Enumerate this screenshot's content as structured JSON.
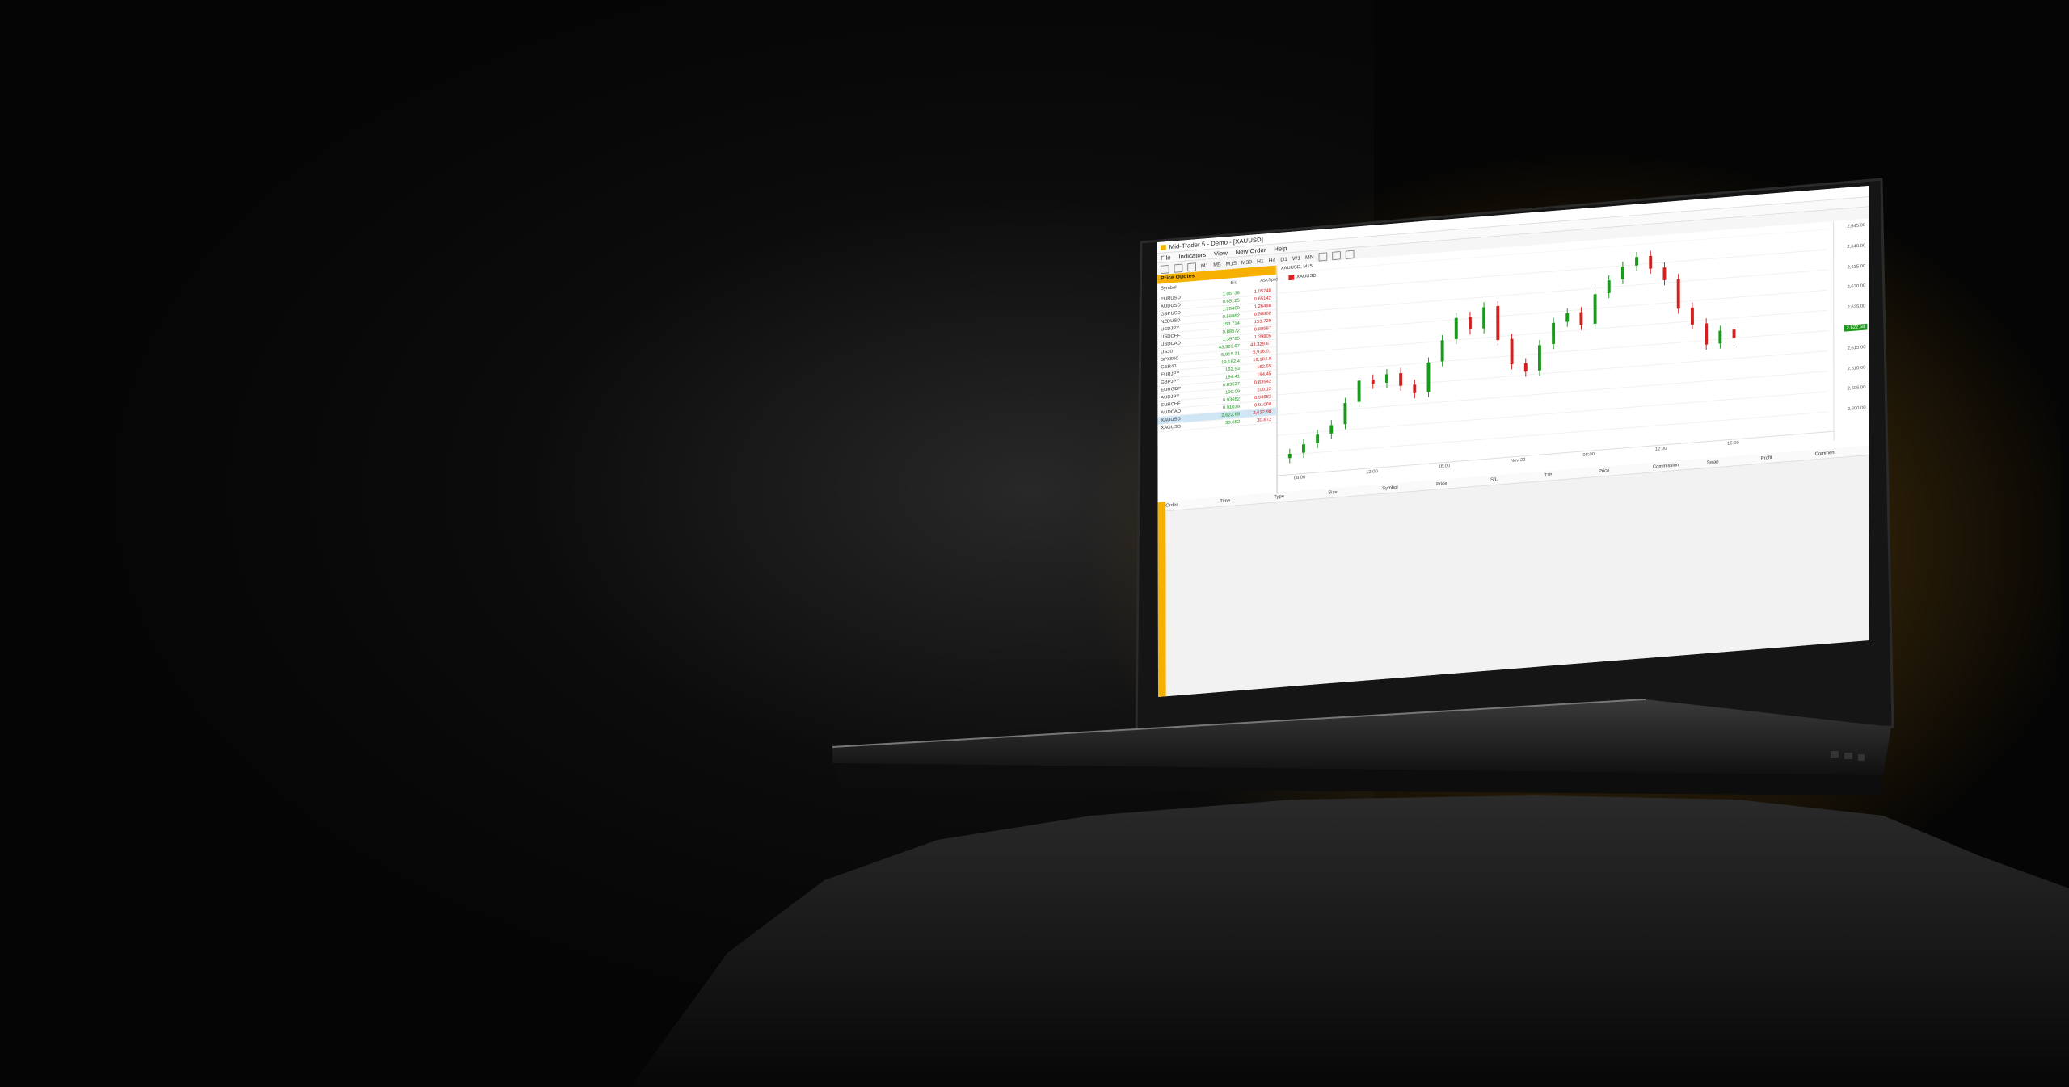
{
  "window": {
    "title": "Mid-Trader 5 - Demo - [XAUUSD]"
  },
  "menu": [
    "File",
    "Indicators",
    "View",
    "New Order",
    "Help"
  ],
  "toolbar": {
    "timeframes": [
      "M1",
      "M5",
      "M15",
      "M30",
      "H1",
      "H4",
      "D1",
      "W1",
      "MN"
    ]
  },
  "price_quotes": {
    "title": "Price Quotes",
    "columns": {
      "symbol": "Symbol",
      "bid": "Bid",
      "ask": "Ask",
      "spread": "Sprd"
    },
    "rows": [
      {
        "symbol": "EURUSD",
        "bid": "1.05738",
        "ask": "1.05748"
      },
      {
        "symbol": "AUDUSD",
        "bid": "0.65125",
        "ask": "0.65142"
      },
      {
        "symbol": "GBPUSD",
        "bid": "1.26469",
        "ask": "1.26488"
      },
      {
        "symbol": "NZDUSD",
        "bid": "0.58862",
        "ask": "0.58882"
      },
      {
        "symbol": "USDJPY",
        "bid": "153.714",
        "ask": "153.729"
      },
      {
        "symbol": "USDCHF",
        "bid": "0.88572",
        "ask": "0.88587"
      },
      {
        "symbol": "USDCAD",
        "bid": "1.39785",
        "ask": "1.39805"
      },
      {
        "symbol": "US30",
        "bid": "43,326.67",
        "ask": "43,329.67"
      },
      {
        "symbol": "SPX500",
        "bid": "5,915.21",
        "ask": "5,916.01"
      },
      {
        "symbol": "GER40",
        "bid": "19,182.4",
        "ask": "19,184.0"
      },
      {
        "symbol": "EURJPY",
        "bid": "162.53",
        "ask": "162.55"
      },
      {
        "symbol": "GBPJPY",
        "bid": "194.41",
        "ask": "194.45"
      },
      {
        "symbol": "EURGBP",
        "bid": "0.83527",
        "ask": "0.83542"
      },
      {
        "symbol": "AUDJPY",
        "bid": "100.09",
        "ask": "100.12"
      },
      {
        "symbol": "EURCHF",
        "bid": "0.93662",
        "ask": "0.93682"
      },
      {
        "symbol": "AUDCAD",
        "bid": "0.91039",
        "ask": "0.91060"
      },
      {
        "symbol": "XAUUSD",
        "bid": "2,622.68",
        "ask": "2,622.98",
        "selected": true
      },
      {
        "symbol": "XAGUSD",
        "bid": "30.852",
        "ask": "30.872"
      }
    ]
  },
  "chart": {
    "tab_label": "XAUUSD, M15",
    "symbol_label": "XAUUSD",
    "current_price": "2,622.68",
    "price_ticks": [
      "2,645.00",
      "2,640.00",
      "2,635.00",
      "2,630.00",
      "2,625.00",
      "2,620.00",
      "2,615.00",
      "2,610.00",
      "2,605.00",
      "2,600.00"
    ],
    "time_ticks": [
      "08:00",
      "12:00",
      "16:00",
      "Nov 22",
      "08:00",
      "12:00",
      "16:00"
    ]
  },
  "chart_data": {
    "type": "candlestick",
    "x": [
      "08:00",
      "12:00",
      "16:00",
      "Nov 22",
      "08:00",
      "12:00",
      "16:00"
    ],
    "ylim": [
      2598,
      2646
    ],
    "close_series": [
      2603,
      2605,
      2607,
      2609,
      2614,
      2619,
      2618,
      2620,
      2617,
      2615,
      2622,
      2627,
      2632,
      2629,
      2634,
      2626,
      2620,
      2618,
      2624,
      2629,
      2631,
      2628,
      2635,
      2638,
      2641,
      2643,
      2640,
      2637,
      2630,
      2626,
      2621,
      2624,
      2622
    ]
  },
  "orders": {
    "columns": [
      "Order",
      "Time",
      "Type",
      "Size",
      "Symbol",
      "Price",
      "S/L",
      "T/P",
      "Price",
      "Commission",
      "Swap",
      "Profit",
      "Comment"
    ]
  }
}
